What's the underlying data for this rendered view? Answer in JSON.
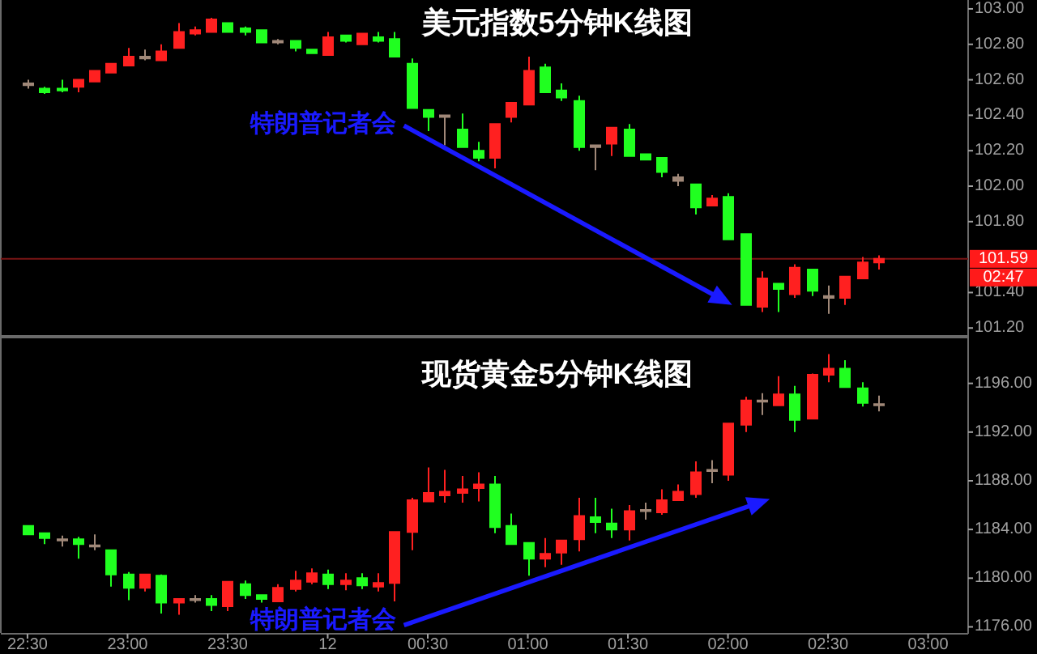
{
  "chart_data": [
    {
      "type": "candlestick",
      "title": "美元指数5分钟K线图",
      "x": [
        "--01-11T22:30",
        "--01-11T22:35",
        "--01-11T22:40",
        "--01-11T22:45",
        "--01-11T22:50",
        "--01-11T22:55",
        "--01-11T23:00",
        "--01-11T23:05",
        "--01-11T23:10",
        "--01-11T23:15",
        "--01-11T23:20",
        "--01-11T23:25",
        "--01-11T23:30",
        "--01-11T23:35",
        "--01-11T23:40",
        "--01-11T23:45",
        "--01-11T23:50",
        "--01-11T23:55",
        "--01-12T00:00",
        "--01-12T00:05",
        "--01-12T00:10",
        "--01-12T00:15",
        "--01-12T00:20",
        "--01-12T00:25",
        "--01-12T00:30",
        "--01-12T00:35",
        "--01-12T00:40",
        "--01-12T00:45",
        "--01-12T00:50",
        "--01-12T00:55",
        "--01-12T01:00",
        "--01-12T01:05",
        "--01-12T01:10",
        "--01-12T01:15",
        "--01-12T01:20",
        "--01-12T01:25",
        "--01-12T01:30",
        "--01-12T01:35",
        "--01-12T01:40",
        "--01-12T01:45",
        "--01-12T01:50",
        "--01-12T01:55",
        "--01-12T02:00",
        "--01-12T02:05",
        "--01-12T02:10",
        "--01-12T02:15",
        "--01-12T02:20",
        "--01-12T02:25",
        "--01-12T02:30",
        "--01-12T02:35",
        "--01-12T02:40",
        "--01-12T02:45"
      ],
      "ohlc": [
        [
          102.57,
          102.6,
          102.55,
          102.58
        ],
        [
          102.55,
          102.56,
          102.52,
          102.53
        ],
        [
          102.55,
          102.6,
          102.53,
          102.54
        ],
        [
          102.56,
          102.6,
          102.53,
          102.6
        ],
        [
          102.59,
          102.65,
          102.59,
          102.65
        ],
        [
          102.64,
          102.69,
          102.64,
          102.69
        ],
        [
          102.68,
          102.78,
          102.68,
          102.73
        ],
        [
          102.72,
          102.77,
          102.71,
          102.73
        ],
        [
          102.71,
          102.8,
          102.71,
          102.76
        ],
        [
          102.78,
          102.92,
          102.78,
          102.87
        ],
        [
          102.86,
          102.9,
          102.85,
          102.88
        ],
        [
          102.87,
          102.95,
          102.87,
          102.94
        ],
        [
          102.92,
          102.92,
          102.87,
          102.87
        ],
        [
          102.89,
          102.9,
          102.85,
          102.87
        ],
        [
          102.88,
          102.88,
          102.81,
          102.81
        ],
        [
          102.82,
          102.83,
          102.8,
          102.81
        ],
        [
          102.82,
          102.82,
          102.76,
          102.78
        ],
        [
          102.77,
          102.77,
          102.75,
          102.75
        ],
        [
          102.74,
          102.87,
          102.74,
          102.84
        ],
        [
          102.85,
          102.85,
          102.81,
          102.82
        ],
        [
          102.8,
          102.86,
          102.8,
          102.86
        ],
        [
          102.84,
          102.87,
          102.81,
          102.82
        ],
        [
          102.83,
          102.87,
          102.73,
          102.73
        ],
        [
          102.69,
          102.72,
          102.44,
          102.44
        ],
        [
          102.43,
          102.43,
          102.31,
          102.39
        ],
        [
          102.4,
          102.4,
          102.23,
          102.39
        ],
        [
          102.32,
          102.41,
          102.22,
          102.22
        ],
        [
          102.2,
          102.25,
          102.14,
          102.16
        ],
        [
          102.16,
          102.35,
          102.1,
          102.35
        ],
        [
          102.39,
          102.47,
          102.36,
          102.47
        ],
        [
          102.46,
          102.73,
          102.46,
          102.65
        ],
        [
          102.67,
          102.69,
          102.53,
          102.53
        ],
        [
          102.54,
          102.58,
          102.48,
          102.5
        ],
        [
          102.48,
          102.51,
          102.2,
          102.22
        ],
        [
          102.23,
          102.23,
          102.09,
          102.22
        ],
        [
          102.24,
          102.33,
          102.17,
          102.33
        ],
        [
          102.32,
          102.35,
          102.17,
          102.17
        ],
        [
          102.18,
          102.18,
          102.15,
          102.15
        ],
        [
          102.16,
          102.16,
          102.05,
          102.08
        ],
        [
          102.03,
          102.07,
          102.0,
          102.05
        ],
        [
          102.01,
          102.01,
          101.84,
          101.88
        ],
        [
          101.89,
          101.95,
          101.89,
          101.93
        ],
        [
          101.94,
          101.96,
          101.7,
          101.7
        ],
        [
          101.73,
          101.73,
          101.33,
          101.33
        ],
        [
          101.32,
          101.52,
          101.29,
          101.48
        ],
        [
          101.45,
          101.45,
          101.29,
          101.42
        ],
        [
          101.39,
          101.56,
          101.37,
          101.54
        ],
        [
          101.53,
          101.53,
          101.38,
          101.41
        ],
        [
          101.38,
          101.44,
          101.28,
          101.37
        ],
        [
          101.37,
          101.49,
          101.33,
          101.49
        ],
        [
          101.48,
          101.6,
          101.48,
          101.57
        ],
        [
          101.57,
          101.61,
          101.53,
          101.59
        ]
      ],
      "colors": [
        "#a08878",
        "#20ff20",
        "#20ff20",
        "#ff2020",
        "#ff2020",
        "#ff2020",
        "#ff2020",
        "#a08878",
        "#ff2020",
        "#ff2020",
        "#ff2020",
        "#ff2020",
        "#20ff20",
        "#20ff20",
        "#20ff20",
        "#a08878",
        "#20ff20",
        "#20ff20",
        "#ff2020",
        "#20ff20",
        "#ff2020",
        "#20ff20",
        "#20ff20",
        "#20ff20",
        "#20ff20",
        "#a08878",
        "#20ff20",
        "#20ff20",
        "#ff2020",
        "#ff2020",
        "#ff2020",
        "#20ff20",
        "#20ff20",
        "#20ff20",
        "#a08878",
        "#ff2020",
        "#20ff20",
        "#20ff20",
        "#20ff20",
        "#a08878",
        "#20ff20",
        "#ff2020",
        "#20ff20",
        "#20ff20",
        "#ff2020",
        "#20ff20",
        "#ff2020",
        "#20ff20",
        "#a08878",
        "#ff2020",
        "#ff2020",
        "#ff2020"
      ],
      "xlim": [
        "--01-11T22:22",
        "--01-12T03:12"
      ],
      "ylim": [
        101.16,
        103.05
      ],
      "yticks": [
        {
          "value": 101.2,
          "label": "101.20"
        },
        {
          "value": 101.4,
          "label": "101.40"
        },
        {
          "value": 101.8,
          "label": "101.80"
        },
        {
          "value": 102.0,
          "label": "102.00"
        },
        {
          "value": 102.2,
          "label": "102.20"
        },
        {
          "value": 102.4,
          "label": "102.40"
        },
        {
          "value": 102.6,
          "label": "102.60"
        },
        {
          "value": 102.8,
          "label": "102.80"
        },
        {
          "value": 103.0,
          "label": "103.00"
        }
      ],
      "tick_labels": "y",
      "ref_lines": [
        {
          "axis": "y",
          "value": 101.59,
          "label": "101.59",
          "color": "#7a1515"
        }
      ],
      "annotations": [
        "特朗普记者会",
        "02:47"
      ]
    },
    {
      "type": "candlestick",
      "title": "现货黄金5分钟K线图",
      "x": [
        "--01-11T22:30",
        "--01-11T22:35",
        "--01-11T22:40",
        "--01-11T22:45",
        "--01-11T22:50",
        "--01-11T22:55",
        "--01-11T23:00",
        "--01-11T23:05",
        "--01-11T23:10",
        "--01-11T23:15",
        "--01-11T23:20",
        "--01-11T23:25",
        "--01-11T23:30",
        "--01-11T23:35",
        "--01-11T23:40",
        "--01-11T23:45",
        "--01-11T23:50",
        "--01-11T23:55",
        "--01-12T00:00",
        "--01-12T00:05",
        "--01-12T00:10",
        "--01-12T00:15",
        "--01-12T00:20",
        "--01-12T00:25",
        "--01-12T00:30",
        "--01-12T00:35",
        "--01-12T00:40",
        "--01-12T00:45",
        "--01-12T00:50",
        "--01-12T00:55",
        "--01-12T01:00",
        "--01-12T01:05",
        "--01-12T01:10",
        "--01-12T01:15",
        "--01-12T01:20",
        "--01-12T01:25",
        "--01-12T01:30",
        "--01-12T01:35",
        "--01-12T01:40",
        "--01-12T01:45",
        "--01-12T01:50",
        "--01-12T01:55",
        "--01-12T02:00",
        "--01-12T02:05",
        "--01-12T02:10",
        "--01-12T02:15",
        "--01-12T02:20",
        "--01-12T02:25",
        "--01-12T02:30",
        "--01-12T02:35",
        "--01-12T02:40",
        "--01-12T02:45"
      ],
      "ohlc": [
        [
          1184.3,
          1184.3,
          1183.6,
          1183.6
        ],
        [
          1183.7,
          1183.7,
          1182.8,
          1183.3
        ],
        [
          1183.2,
          1183.5,
          1182.6,
          1183.1
        ],
        [
          1183.2,
          1183.4,
          1181.6,
          1182.8
        ],
        [
          1182.6,
          1183.6,
          1182.3,
          1182.7
        ],
        [
          1182.3,
          1182.3,
          1179.3,
          1180.3
        ],
        [
          1180.3,
          1180.5,
          1178.2,
          1179.2
        ],
        [
          1179.2,
          1180.3,
          1178.9,
          1180.3
        ],
        [
          1180.2,
          1180.3,
          1177.1,
          1178.0
        ],
        [
          1178.0,
          1178.3,
          1177.0,
          1178.3
        ],
        [
          1178.3,
          1178.6,
          1178.0,
          1178.2
        ],
        [
          1178.3,
          1178.6,
          1177.3,
          1177.8
        ],
        [
          1177.7,
          1179.7,
          1177.3,
          1179.7
        ],
        [
          1179.5,
          1179.8,
          1178.3,
          1178.6
        ],
        [
          1178.6,
          1178.6,
          1178.0,
          1178.3
        ],
        [
          1178.1,
          1179.5,
          1178.1,
          1179.2
        ],
        [
          1179.1,
          1180.6,
          1178.9,
          1179.8
        ],
        [
          1179.7,
          1180.8,
          1179.5,
          1180.4
        ],
        [
          1180.3,
          1180.7,
          1179.1,
          1179.5
        ],
        [
          1179.5,
          1180.4,
          1179.0,
          1179.8
        ],
        [
          1180.0,
          1180.4,
          1179.1,
          1179.4
        ],
        [
          1179.3,
          1180.4,
          1178.9,
          1179.6
        ],
        [
          1179.6,
          1183.8,
          1178.1,
          1183.8
        ],
        [
          1183.8,
          1186.6,
          1182.3,
          1186.4
        ],
        [
          1186.3,
          1189.1,
          1186.3,
          1187.0
        ],
        [
          1186.8,
          1188.9,
          1186.2,
          1187.1
        ],
        [
          1187.0,
          1188.4,
          1186.2,
          1187.3
        ],
        [
          1187.4,
          1188.7,
          1186.3,
          1187.7
        ],
        [
          1187.7,
          1188.4,
          1183.7,
          1184.2
        ],
        [
          1184.3,
          1185.3,
          1182.8,
          1182.8
        ],
        [
          1182.9,
          1182.9,
          1180.2,
          1181.6
        ],
        [
          1181.6,
          1183.3,
          1180.9,
          1182.0
        ],
        [
          1182.1,
          1183.1,
          1181.1,
          1183.1
        ],
        [
          1183.2,
          1186.6,
          1182.2,
          1185.1
        ],
        [
          1185.0,
          1186.6,
          1183.7,
          1184.6
        ],
        [
          1184.5,
          1185.7,
          1183.3,
          1184.0
        ],
        [
          1184.0,
          1186.0,
          1183.1,
          1185.5
        ],
        [
          1185.5,
          1186.2,
          1184.8,
          1185.6
        ],
        [
          1185.4,
          1187.3,
          1185.2,
          1186.4
        ],
        [
          1186.4,
          1187.7,
          1186.4,
          1187.1
        ],
        [
          1186.9,
          1189.6,
          1186.6,
          1188.7
        ],
        [
          1188.8,
          1189.7,
          1187.8,
          1188.9
        ],
        [
          1188.5,
          1192.7,
          1188.0,
          1192.7
        ],
        [
          1192.6,
          1194.9,
          1192.0,
          1194.6
        ],
        [
          1194.5,
          1195.2,
          1193.4,
          1194.6
        ],
        [
          1194.2,
          1196.6,
          1194.2,
          1195.1
        ],
        [
          1195.1,
          1195.8,
          1192.0,
          1193.0
        ],
        [
          1193.1,
          1196.8,
          1193.1,
          1196.7
        ],
        [
          1196.7,
          1198.4,
          1196.1,
          1197.2
        ],
        [
          1197.2,
          1197.9,
          1195.7,
          1195.7
        ],
        [
          1195.6,
          1196.1,
          1194.1,
          1194.4
        ],
        [
          1194.3,
          1195.0,
          1193.7,
          1194.2
        ]
      ],
      "colors": [
        "#20ff20",
        "#20ff20",
        "#a08878",
        "#20ff20",
        "#a08878",
        "#20ff20",
        "#20ff20",
        "#ff2020",
        "#20ff20",
        "#ff2020",
        "#a08878",
        "#20ff20",
        "#ff2020",
        "#20ff20",
        "#20ff20",
        "#ff2020",
        "#ff2020",
        "#ff2020",
        "#20ff20",
        "#ff2020",
        "#20ff20",
        "#ff2020",
        "#ff2020",
        "#ff2020",
        "#ff2020",
        "#ff2020",
        "#ff2020",
        "#ff2020",
        "#20ff20",
        "#20ff20",
        "#20ff20",
        "#ff2020",
        "#ff2020",
        "#ff2020",
        "#20ff20",
        "#20ff20",
        "#ff2020",
        "#a08878",
        "#ff2020",
        "#ff2020",
        "#ff2020",
        "#a08878",
        "#ff2020",
        "#ff2020",
        "#a08878",
        "#ff2020",
        "#20ff20",
        "#ff2020",
        "#ff2020",
        "#20ff20",
        "#20ff20",
        "#a08878"
      ],
      "xlim": [
        "--01-11T22:22",
        "--01-12T03:12"
      ],
      "xticks": [
        {
          "value": "--01-11T22:30",
          "label": "22:30"
        },
        {
          "value": "--01-11T23:00",
          "label": "23:00"
        },
        {
          "value": "--01-11T23:30",
          "label": "23:30"
        },
        {
          "value": "--01-12T00:00",
          "label": "12"
        },
        {
          "value": "--01-12T00:30",
          "label": "00:30"
        },
        {
          "value": "--01-12T01:00",
          "label": "01:00"
        },
        {
          "value": "--01-12T01:30",
          "label": "01:30"
        },
        {
          "value": "--01-12T02:00",
          "label": "02:00"
        },
        {
          "value": "--01-12T02:30",
          "label": "02:30"
        },
        {
          "value": "--01-12T03:00",
          "label": "03:00"
        }
      ],
      "ylim": [
        1175.5,
        1199.7
      ],
      "yticks": [
        {
          "value": 1176,
          "label": "1176.00"
        },
        {
          "value": 1180,
          "label": "1180.00"
        },
        {
          "value": 1184,
          "label": "1184.00"
        },
        {
          "value": 1188,
          "label": "1188.00"
        },
        {
          "value": 1192,
          "label": "1192.00"
        },
        {
          "value": 1196,
          "label": "1196.00"
        }
      ],
      "annotations": [
        "特朗普记者会"
      ]
    }
  ]
}
